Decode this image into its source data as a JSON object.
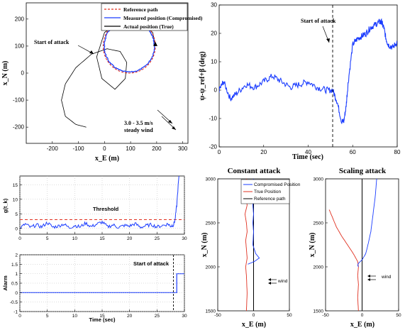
{
  "chart_data": [
    {
      "id": "trajectory",
      "type": "line",
      "xlabel": "x_E (m)",
      "ylabel": "x_N (m)",
      "xlim": [
        -300,
        320
      ],
      "ylim": [
        -260,
        260
      ],
      "xticks": [
        -200,
        -100,
        0,
        100,
        200,
        300
      ],
      "yticks": [
        -200,
        -100,
        0,
        100,
        200
      ],
      "legend": [
        "Reference path",
        "Measured position (Compromised)",
        "Actual position (True)"
      ],
      "legend_placement": "top-right",
      "annotations": {
        "attack": "Start of attack",
        "wind_line1": "3.0 - 3.5 m/s",
        "wind_line2": "steady wind"
      },
      "reference_circle": {
        "center": [
          95,
          100
        ],
        "radius": 100
      },
      "series": [
        {
          "name": "Reference path",
          "style": "dashed",
          "color": "#e03020",
          "x": [
            195,
            166,
            95,
            24,
            -5,
            24,
            95,
            166,
            195
          ],
          "y": [
            100,
            171,
            200,
            171,
            100,
            29,
            0,
            29,
            100
          ]
        },
        {
          "name": "Measured position (Compromised)",
          "style": "solid",
          "color": "#1a3cff",
          "x": [
            195,
            166,
            95,
            28,
            0,
            28,
            95,
            166,
            195
          ],
          "y": [
            100,
            168,
            196,
            168,
            100,
            32,
            4,
            32,
            100
          ]
        },
        {
          "name": "Actual position (True)",
          "style": "solid",
          "color": "#000000",
          "x": [
            195,
            185,
            140,
            60,
            0,
            -30,
            -10,
            40,
            80,
            85,
            60,
            10,
            -50,
            -110,
            -150,
            -165,
            -150,
            -110,
            -70
          ],
          "y": [
            100,
            150,
            190,
            195,
            150,
            60,
            -20,
            -60,
            -20,
            40,
            80,
            90,
            70,
            20,
            -40,
            -100,
            -160,
            -190,
            -200
          ]
        }
      ]
    },
    {
      "id": "heading",
      "type": "line",
      "xlabel": "Time (sec)",
      "ylabel": "ψ-ψ_ref+β (deg)",
      "xlim": [
        0,
        80
      ],
      "ylim": [
        -20,
        30
      ],
      "xticks": [
        0,
        20,
        40,
        60,
        80
      ],
      "yticks": [
        -20,
        -10,
        0,
        10,
        20,
        30
      ],
      "attack_time": 51,
      "annotations": {
        "attack": "Start of attack"
      },
      "series": [
        {
          "name": "",
          "color": "#1a3cff",
          "x": [
            0,
            2,
            5,
            8,
            12,
            16,
            20,
            24,
            28,
            32,
            36,
            40,
            44,
            48,
            51,
            53,
            55,
            56,
            57,
            58,
            60,
            62,
            64,
            66,
            68,
            70,
            72,
            73,
            74,
            75,
            76,
            78,
            80
          ],
          "y": [
            0,
            3,
            -3,
            -1,
            2,
            1,
            3,
            5,
            3,
            1,
            2,
            3,
            1,
            0,
            0,
            -4,
            -11,
            -11,
            -6,
            3,
            16,
            18,
            19,
            20,
            22,
            23,
            24,
            24,
            22,
            18,
            16,
            15,
            17
          ]
        }
      ]
    },
    {
      "id": "g_statistic",
      "type": "line",
      "xlabel": "",
      "ylabel": "g(t_k)",
      "xlim": [
        0,
        30
      ],
      "ylim": [
        -2,
        18
      ],
      "xticks": [
        0,
        5,
        10,
        15,
        20,
        25,
        30
      ],
      "yticks": [
        0,
        5,
        10,
        15
      ],
      "threshold": {
        "label": "Threshold",
        "value": 3
      },
      "series": [
        {
          "name": "",
          "color": "#1a3cff",
          "x": [
            0,
            1,
            2,
            3,
            4,
            5,
            6,
            7,
            8,
            9,
            10,
            11,
            12,
            13,
            14,
            15,
            16,
            17,
            18,
            19,
            20,
            21,
            22,
            23,
            24,
            25,
            26,
            27,
            27.5,
            28,
            28.3,
            28.6,
            29
          ],
          "y": [
            0,
            1.5,
            0.3,
            1.2,
            0.5,
            2.0,
            0.4,
            0.8,
            1.5,
            0.2,
            1.0,
            0.5,
            1.8,
            0.6,
            1.4,
            2.2,
            0.5,
            1.2,
            0.3,
            1.0,
            0.8,
            1.6,
            0.4,
            0.9,
            1.3,
            0.5,
            1.0,
            1.5,
            0.8,
            1.2,
            3.0,
            8.0,
            18.0
          ]
        }
      ]
    },
    {
      "id": "alarm",
      "type": "line",
      "xlabel": "Time (sec)",
      "ylabel": "Alarm",
      "xlim": [
        0,
        30
      ],
      "ylim": [
        -1,
        2
      ],
      "xticks": [
        0,
        5,
        10,
        15,
        20,
        25,
        30
      ],
      "yticks": [
        -1,
        -0.5,
        0,
        0.5,
        1,
        1.5,
        2
      ],
      "attack_time": 28,
      "annotations": {
        "attack": "Start of attack"
      },
      "series": [
        {
          "name": "",
          "color": "#1a3cff",
          "x": [
            0,
            28.6,
            28.6,
            30
          ],
          "y": [
            0,
            0,
            1,
            1
          ]
        }
      ]
    },
    {
      "id": "constant_attack",
      "type": "line",
      "title": "Constant attack",
      "xlabel": "x_E (m)",
      "ylabel": "x_N (m)",
      "xlim": [
        -50,
        50
      ],
      "ylim": [
        1500,
        3000
      ],
      "xticks": [
        -50,
        0,
        50
      ],
      "yticks": [
        1500,
        2000,
        2500,
        3000
      ],
      "legend": [
        "Compromised Position",
        "True Position",
        "Reference path"
      ],
      "annotations": {
        "wind": "wind"
      },
      "series": [
        {
          "name": "Compromised Position",
          "color": "#1a3cff",
          "x": [
            0,
            -1,
            0,
            -1,
            0,
            -1,
            0,
            -1,
            3,
            8,
            1,
            -5,
            -8
          ],
          "y": [
            3000,
            2900,
            2800,
            2700,
            2600,
            2500,
            2400,
            2250,
            2150,
            2100,
            2060,
            2040,
            2030
          ]
        },
        {
          "name": "True Position",
          "color": "#e03020",
          "x": [
            -10,
            -8,
            -11,
            -9,
            -12,
            -10,
            -9,
            -11,
            -10,
            -9,
            -11,
            -10,
            -9,
            -10
          ],
          "y": [
            3000,
            2900,
            2800,
            2700,
            2600,
            2500,
            2400,
            2300,
            2200,
            2100,
            2000,
            1900,
            1700,
            1500
          ]
        },
        {
          "name": "Reference path",
          "color": "#000000",
          "x": [
            0,
            0
          ],
          "y": [
            1500,
            3000
          ]
        }
      ]
    },
    {
      "id": "scaling_attack",
      "type": "line",
      "title": "Scaling attack",
      "xlabel": "x_E (m)",
      "ylabel": "x_N (m)",
      "xlim": [
        -50,
        50
      ],
      "ylim": [
        1500,
        3000
      ],
      "xticks": [
        -50,
        0,
        50
      ],
      "yticks": [
        1500,
        2000,
        2500,
        3000
      ],
      "annotations": {
        "wind": "wind"
      },
      "series": [
        {
          "name": "Compromised Position",
          "color": "#1a3cff",
          "x": [
            20,
            18,
            15,
            12,
            8,
            5,
            0,
            -5,
            -6,
            -5
          ],
          "y": [
            3000,
            2800,
            2600,
            2400,
            2250,
            2150,
            2080,
            2040,
            2020,
            2000
          ]
        },
        {
          "name": "True Position",
          "color": "#e03020",
          "x": [
            -45,
            -40,
            -35,
            -28,
            -20,
            -12,
            -6,
            -5,
            -6,
            -5,
            -6,
            -5
          ],
          "y": [
            2650,
            2550,
            2450,
            2350,
            2250,
            2150,
            2060,
            2000,
            1900,
            1800,
            1650,
            1500
          ]
        },
        {
          "name": "Reference path",
          "color": "#000000",
          "x": [
            0,
            0
          ],
          "y": [
            1500,
            3000
          ]
        }
      ]
    }
  ]
}
